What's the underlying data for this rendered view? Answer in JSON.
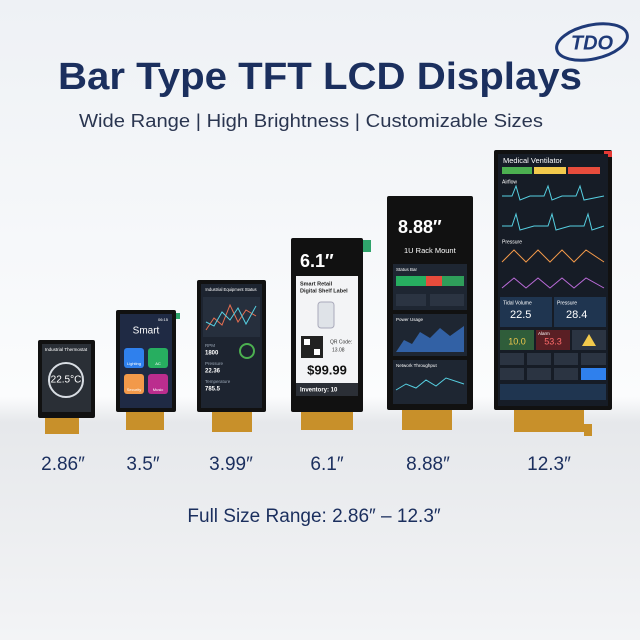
{
  "logo": "TDO",
  "title": "Bar Type TFT LCD Displays",
  "subtitle": "Wide Range | High Brightness | Customizable Sizes",
  "displays": [
    {
      "size": "2.86″",
      "screen": [
        "Industrial Thermostat",
        "22.5°C"
      ]
    },
    {
      "size": "3.5″",
      "screen": [
        "Smart",
        "06:15",
        "Lighting",
        "AC",
        "Security",
        "Music"
      ]
    },
    {
      "size": "3.99″",
      "screen": [
        "Industrial Equipment Status",
        "RPM",
        "1800",
        "Pressure",
        "22.36",
        "Temperature",
        "785.5"
      ]
    },
    {
      "size": "6.1″",
      "screen": [
        "6.1″",
        "Smart Retail",
        "Digital Shelf Label",
        "QR Code:",
        "13.08",
        "$99.99",
        "Inventory: 10"
      ]
    },
    {
      "size": "8.88″",
      "screen": [
        "8.88″",
        "1U Rack Mount",
        "Status Bar",
        "Power Usage",
        "Network Throughput"
      ]
    },
    {
      "size": "12.3″",
      "screen": [
        "Medical Ventilator",
        "Airflow",
        "Pressure",
        "Tidal Volume",
        "22.5",
        "Pressure",
        "28.4",
        "Alarm",
        "10.0",
        "53.3"
      ]
    }
  ],
  "footer": "Full Size Range: 2.86″ – 12.3″"
}
